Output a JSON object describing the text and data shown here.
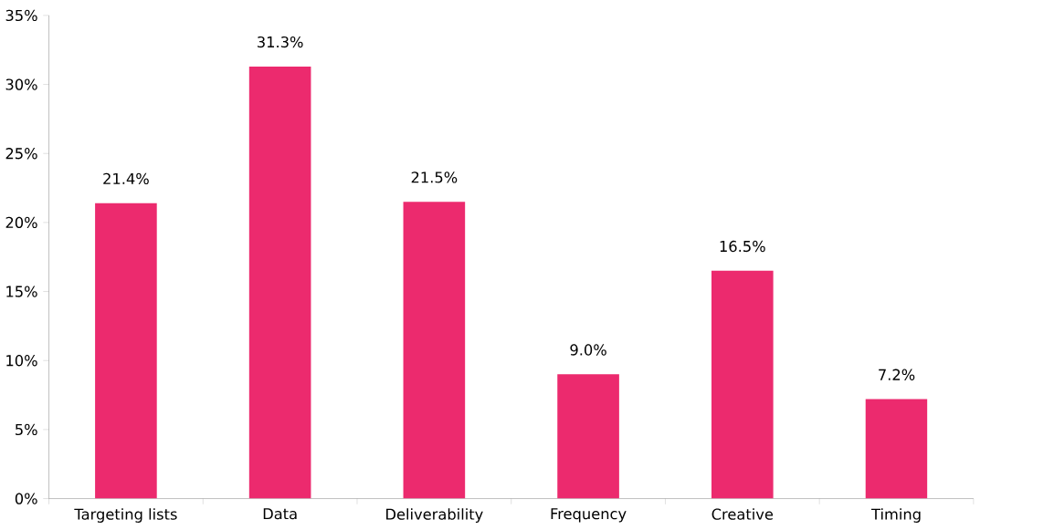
{
  "chart_data": {
    "type": "bar",
    "categories": [
      "Targeting lists",
      "Data",
      "Deliverability",
      "Frequency",
      "Creative",
      "Timing"
    ],
    "values": [
      21.4,
      31.3,
      21.5,
      9.0,
      16.5,
      7.2
    ],
    "value_labels": [
      "21.4%",
      "31.3%",
      "21.5%",
      "9.0%",
      "16.5%",
      "7.2%"
    ],
    "color": "#ec2a6e",
    "ylim": [
      0,
      35
    ],
    "yticks": [
      {
        "value": 0,
        "label": "0%"
      },
      {
        "value": 5,
        "label": "5%"
      },
      {
        "value": 10,
        "label": "10%"
      },
      {
        "value": 15,
        "label": "15%"
      },
      {
        "value": 20,
        "label": "20%"
      },
      {
        "value": 25,
        "label": "25%"
      },
      {
        "value": 30,
        "label": "30%"
      },
      {
        "value": 35,
        "label": "35%"
      }
    ],
    "grid": false
  }
}
